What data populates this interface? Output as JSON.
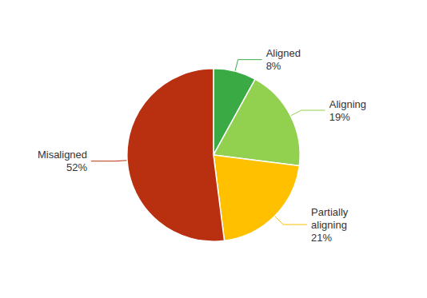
{
  "chart_data": {
    "type": "pie",
    "categories": [
      "Aligned",
      "Aligning",
      "Partially\naligning",
      "Misaligned"
    ],
    "values": [
      8,
      19,
      21,
      52
    ],
    "value_labels": [
      "8%",
      "19%",
      "21%",
      "52%"
    ],
    "colors": [
      "#3aaa45",
      "#92d050",
      "#ffc000",
      "#b83010"
    ],
    "data_labels": true
  }
}
